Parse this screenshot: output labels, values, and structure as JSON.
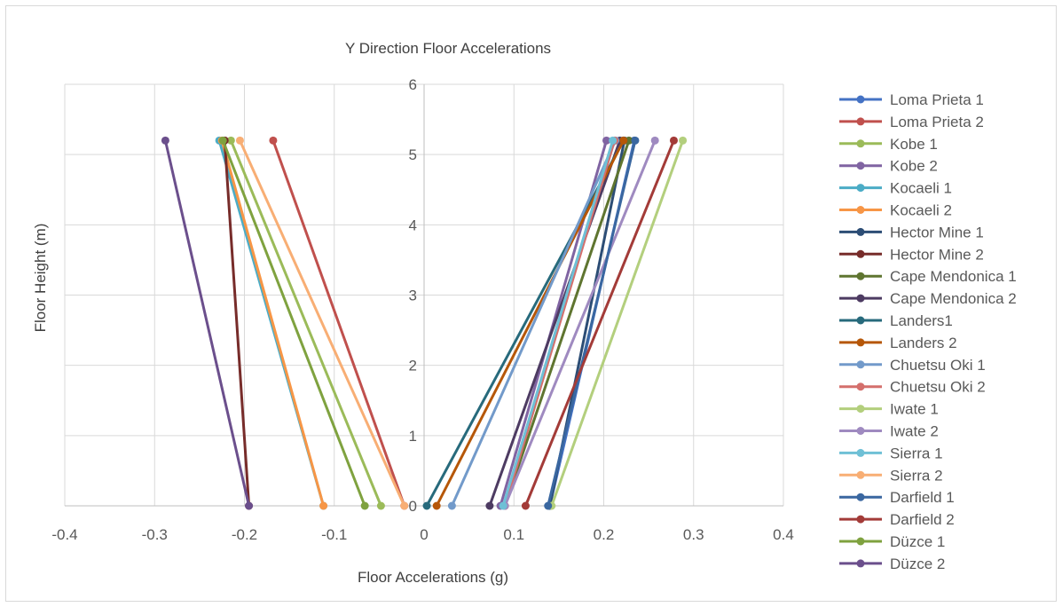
{
  "chart_data": {
    "type": "line",
    "title": "Y Direction Floor Accelerations",
    "xlabel": "Floor Accelerations (g)",
    "ylabel": "Floor Height (m)",
    "xlim": [
      -0.4,
      0.4
    ],
    "ylim": [
      0,
      6
    ],
    "x_ticks": [
      "-0.4",
      "-0.3",
      "-0.2",
      "-0.1",
      "0",
      "0.1",
      "0.2",
      "0.3",
      "0.4"
    ],
    "y_ticks": [
      "0",
      "1",
      "2",
      "3",
      "4",
      "5",
      "6"
    ],
    "grid": true,
    "legend_position": "right",
    "series": [
      {
        "name": "Loma Prieta 1",
        "color": "#4472c4",
        "x": [
          0.14,
          0.234
        ],
        "y": [
          0,
          5.2
        ]
      },
      {
        "name": "Loma Prieta 2",
        "color": "#c0504d",
        "x": [
          -0.022,
          -0.168
        ],
        "y": [
          0,
          5.2
        ]
      },
      {
        "name": "Kobe 1",
        "color": "#9bbb59",
        "x": [
          -0.048,
          -0.215
        ],
        "y": [
          0,
          5.2
        ]
      },
      {
        "name": "Kobe 2",
        "color": "#8064a2",
        "x": [
          0.085,
          0.203
        ],
        "y": [
          0,
          5.2
        ]
      },
      {
        "name": "Kocaeli 1",
        "color": "#4bacc6",
        "x": [
          -0.112,
          -0.228
        ],
        "y": [
          0,
          5.2
        ]
      },
      {
        "name": "Kocaeli 2",
        "color": "#f79646",
        "x": [
          -0.112,
          -0.225
        ],
        "y": [
          0,
          5.2
        ]
      },
      {
        "name": "Hector Mine 1",
        "color": "#2c4d75",
        "x": [
          0.14,
          0.223
        ],
        "y": [
          0,
          5.2
        ]
      },
      {
        "name": "Hector Mine 2",
        "color": "#772c2a",
        "x": [
          -0.195,
          -0.222
        ],
        "y": [
          0,
          5.2
        ]
      },
      {
        "name": "Cape Mendonica 1",
        "color": "#5f7530",
        "x": [
          0.09,
          0.228
        ],
        "y": [
          0,
          5.2
        ]
      },
      {
        "name": "Cape Mendonica 2",
        "color": "#4d3b62",
        "x": [
          0.073,
          0.218
        ],
        "y": [
          0,
          5.2
        ]
      },
      {
        "name": "Landers1",
        "color": "#276a7c",
        "x": [
          0.003,
          0.222
        ],
        "y": [
          0,
          5.2
        ]
      },
      {
        "name": "Landers 2",
        "color": "#b65708",
        "x": [
          0.014,
          0.222
        ],
        "y": [
          0,
          5.2
        ]
      },
      {
        "name": "Chuetsu Oki 1",
        "color": "#729aca",
        "x": [
          0.031,
          0.213
        ],
        "y": [
          0,
          5.2
        ]
      },
      {
        "name": "Chuetsu Oki 2",
        "color": "#d46f6c",
        "x": [
          0.09,
          0.212
        ],
        "y": [
          0,
          5.2
        ]
      },
      {
        "name": "Iwate 1",
        "color": "#b3cf7d",
        "x": [
          0.142,
          0.288
        ],
        "y": [
          0,
          5.2
        ]
      },
      {
        "name": "Iwate 2",
        "color": "#9f8ac0",
        "x": [
          0.09,
          0.257
        ],
        "y": [
          0,
          5.2
        ]
      },
      {
        "name": "Sierra 1",
        "color": "#6fc0d6",
        "x": [
          0.088,
          0.21
        ],
        "y": [
          0,
          5.2
        ]
      },
      {
        "name": "Sierra 2",
        "color": "#f8ae74",
        "x": [
          -0.022,
          -0.205
        ],
        "y": [
          0,
          5.2
        ]
      },
      {
        "name": "Darfield 1",
        "color": "#3a67a0",
        "x": [
          0.138,
          0.235
        ],
        "y": [
          0,
          5.2
        ]
      },
      {
        "name": "Darfield 2",
        "color": "#a33b38",
        "x": [
          0.113,
          0.278
        ],
        "y": [
          0,
          5.2
        ]
      },
      {
        "name": "Düzce 1",
        "color": "#7fa23f",
        "x": [
          -0.066,
          -0.224
        ],
        "y": [
          0,
          5.2
        ]
      },
      {
        "name": "Düzce 2",
        "color": "#6b4f8c",
        "x": [
          -0.195,
          -0.288
        ],
        "y": [
          0,
          5.2
        ]
      }
    ]
  }
}
